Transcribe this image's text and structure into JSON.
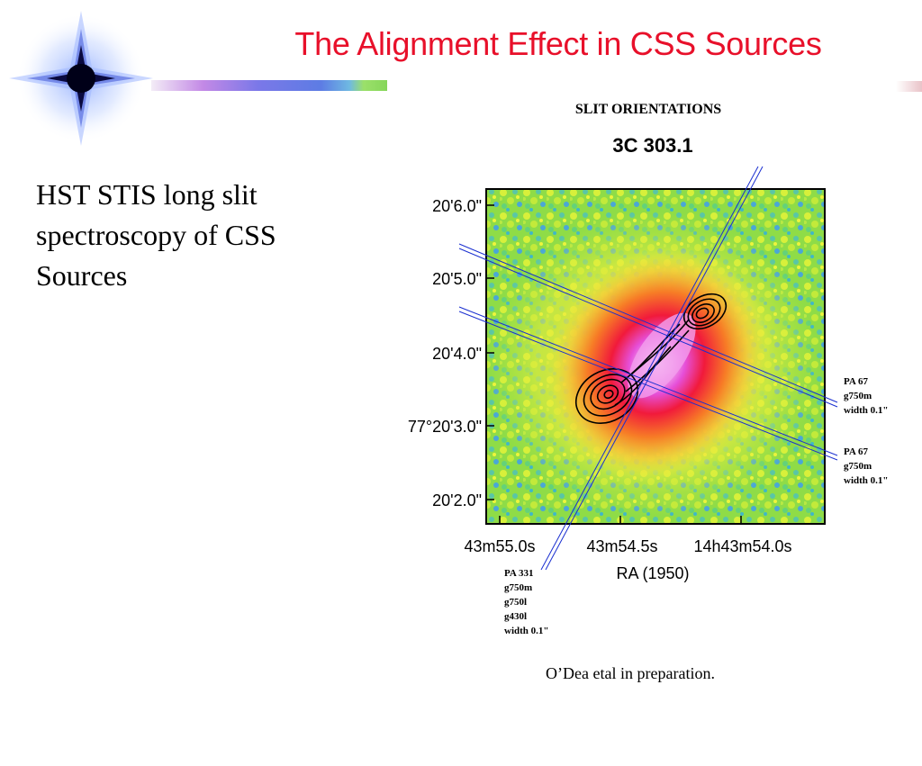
{
  "slide": {
    "title": "The Alignment Effect in CSS Sources",
    "body_text": "HST STIS long slit spectroscopy of CSS Sources",
    "caption": "O’Dea etal in preparation."
  },
  "figure": {
    "header": "SLIT ORIENTATIONS",
    "object_name": "3C 303.1",
    "dec_ticks": [
      "20'6.0\"",
      "20'5.0\"",
      "20'4.0\"",
      "77°20'3.0\"",
      "20'2.0\""
    ],
    "ra_ticks": [
      "43m55.0s",
      "43m54.5s",
      "14h43m54.0s"
    ],
    "x_axis_label": "RA (1950)",
    "slit_annotations": [
      {
        "lines": [
          "PA 67",
          "g750m",
          "width 0.1\""
        ]
      },
      {
        "lines": [
          "PA 67",
          "g750m",
          "width 0.1\""
        ]
      },
      {
        "lines": [
          "PA 331",
          "g750m",
          "g750l",
          "g430l",
          "width 0.1\""
        ]
      }
    ]
  },
  "colors": {
    "title": "#e8102a",
    "slit_lines": "#1a2fd0"
  }
}
